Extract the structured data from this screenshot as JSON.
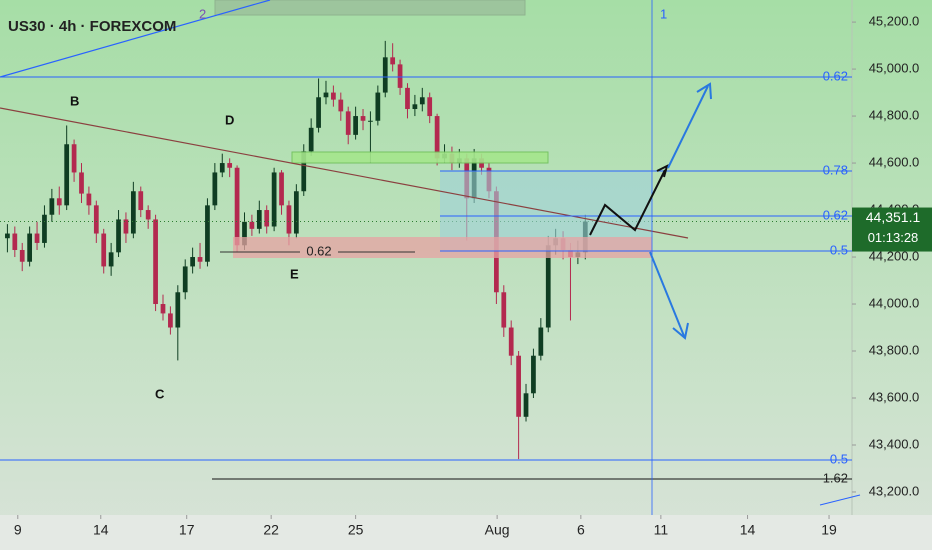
{
  "chart_data": {
    "type": "candlestick",
    "title": "US30 · 4h · FOREXCOM",
    "up_color": "#0f3d22",
    "down_color": "#b3294f",
    "xlim": [
      -1,
      114
    ],
    "ylim": [
      43102,
      45294
    ],
    "xticks": [
      {
        "value": 1.4,
        "label": "9"
      },
      {
        "value": 12.6,
        "label": "14"
      },
      {
        "value": 24.2,
        "label": "17"
      },
      {
        "value": 35.6,
        "label": "22"
      },
      {
        "value": 47.0,
        "label": "25"
      },
      {
        "value": 66.1,
        "label": "Aug"
      },
      {
        "value": 77.4,
        "label": "6"
      },
      {
        "value": 88.2,
        "label": "11"
      },
      {
        "value": 99.9,
        "label": "14"
      },
      {
        "value": 110.9,
        "label": "19"
      }
    ],
    "yticks": [
      {
        "value": 45200,
        "label": "45,200.0"
      },
      {
        "value": 45000,
        "label": "45,000.0"
      },
      {
        "value": 44800,
        "label": "44,800.0"
      },
      {
        "value": 44600,
        "label": "44,600.0"
      },
      {
        "value": 44400,
        "label": "44,400.0"
      },
      {
        "value": 44200,
        "label": "44,200.0"
      },
      {
        "value": 44000,
        "label": "44,000.0"
      },
      {
        "value": 43800,
        "label": "43,800.0"
      },
      {
        "value": 43600,
        "label": "43,600.0"
      },
      {
        "value": 43400,
        "label": "43,400.0"
      },
      {
        "value": 43200,
        "label": "43,200.0"
      }
    ],
    "last_price": {
      "value": 44351.1,
      "label": "44,351.1"
    },
    "countdown": "01:13:28",
    "open": [
      44280,
      44300,
      44230,
      44180,
      44300,
      44260,
      44380,
      44450,
      44420,
      44680,
      44560,
      44470,
      44420,
      44300,
      44160,
      44220,
      44360,
      44300,
      44480,
      44400,
      44360,
      44000,
      43960,
      43900,
      44050,
      44160,
      44200,
      44180,
      44420,
      44560,
      44600,
      44580,
      44250,
      44350,
      44320,
      44400,
      44330,
      44560,
      44420,
      44300,
      44480,
      44650,
      44750,
      44880,
      44900,
      44870,
      44820,
      44720,
      44800,
      44780,
      44780,
      44900,
      45050,
      45020,
      44920,
      44830,
      44850,
      44880,
      44800,
      44620,
      44640,
      44600,
      44620,
      44450,
      44620,
      44580,
      44480,
      44050,
      43900,
      43780,
      43520,
      43620,
      43780,
      43900,
      44250,
      44280,
      44230,
      44200,
      44220
    ],
    "high": [
      44340,
      44330,
      44260,
      44330,
      44350,
      44420,
      44490,
      44500,
      44760,
      44700,
      44600,
      44500,
      44440,
      44320,
      44260,
      44400,
      44390,
      44520,
      44500,
      44420,
      44380,
      44040,
      43990,
      44080,
      44190,
      44240,
      44260,
      44450,
      44600,
      44640,
      44620,
      44590,
      44390,
      44380,
      44440,
      44420,
      44580,
      44570,
      44440,
      44510,
      44680,
      44790,
      44960,
      44950,
      44930,
      44900,
      44840,
      44840,
      44830,
      44820,
      44930,
      45120,
      45110,
      45040,
      44940,
      44890,
      44920,
      44900,
      44810,
      44680,
      44670,
      44660,
      44640,
      44660,
      44640,
      44600,
      44500,
      44080,
      43930,
      43800,
      43660,
      43810,
      43940,
      44290,
      44320,
      44310,
      44260,
      44270,
      44380
    ],
    "low": [
      44220,
      44200,
      44140,
      44160,
      44230,
      44240,
      44350,
      44380,
      44400,
      44520,
      44430,
      44380,
      44260,
      44130,
      44120,
      44200,
      44260,
      44280,
      44370,
      44320,
      43970,
      43930,
      43870,
      43760,
      44020,
      44130,
      44150,
      44160,
      44400,
      44540,
      44540,
      44220,
      44230,
      44290,
      44300,
      44300,
      44310,
      44380,
      44250,
      44280,
      44460,
      44630,
      44730,
      44850,
      44840,
      44780,
      44680,
      44700,
      44740,
      44600,
      44760,
      44880,
      44990,
      44890,
      44790,
      44800,
      44820,
      44770,
      44590,
      44600,
      44570,
      44580,
      44270,
      44430,
      44550,
      44450,
      44000,
      43860,
      43740,
      43340,
      43500,
      43600,
      43760,
      43880,
      44210,
      44190,
      43930,
      44170,
      44190
    ],
    "close": [
      44300,
      44230,
      44180,
      44300,
      44260,
      44380,
      44450,
      44420,
      44680,
      44560,
      44470,
      44420,
      44300,
      44160,
      44220,
      44360,
      44300,
      44480,
      44400,
      44360,
      44000,
      43960,
      43900,
      44050,
      44160,
      44200,
      44180,
      44420,
      44560,
      44600,
      44580,
      44250,
      44350,
      44320,
      44400,
      44330,
      44560,
      44420,
      44300,
      44480,
      44650,
      44750,
      44880,
      44900,
      44870,
      44820,
      44720,
      44800,
      44780,
      44780,
      44900,
      45050,
      45020,
      44920,
      44830,
      44850,
      44880,
      44800,
      44620,
      44640,
      44600,
      44620,
      44450,
      44620,
      44580,
      44480,
      44050,
      43900,
      43780,
      43520,
      43620,
      43780,
      43900,
      44250,
      44280,
      44230,
      44200,
      44220,
      44351.1
    ],
    "annotations": {
      "wave_1": "1",
      "wave_2": "2",
      "point_b": "B",
      "point_c": "C",
      "point_d": "D",
      "point_e": "E",
      "fib_top": "0.62",
      "fib_078": "0.78",
      "fib_062": "0.62",
      "fib_05": "0.5",
      "fib_low": "0.5",
      "fib_162": "1.62",
      "zone_062": "0.62"
    }
  }
}
